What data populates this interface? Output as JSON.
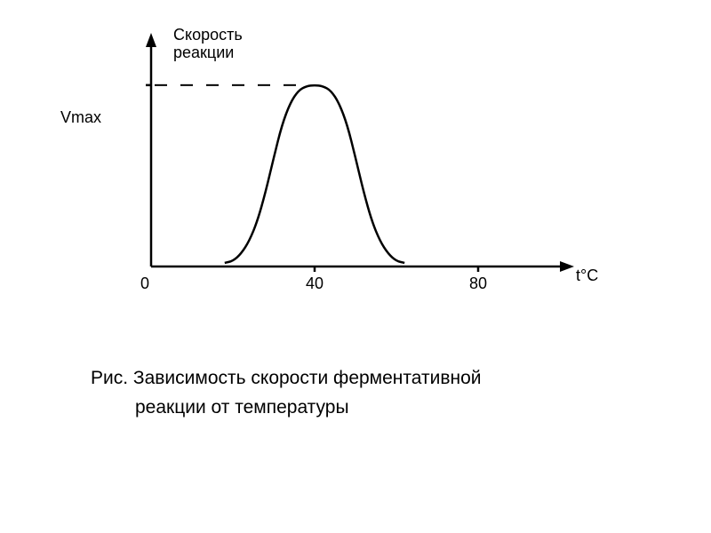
{
  "chart": {
    "type": "line",
    "background_color": "#ffffff",
    "stroke_color": "#000000",
    "axis_stroke_width": 2.5,
    "curve_stroke_width": 2.5,
    "dash_stroke_width": 2,
    "xlim": [
      0,
      100
    ],
    "ylim": [
      0,
      1.2
    ],
    "xtick_values": [
      0,
      40,
      80
    ],
    "xtick_labels": [
      "0",
      "40",
      "80"
    ],
    "ytick_vmax": "Vmax",
    "ylabel_line1": "Скорость",
    "ylabel_line2": "реакции",
    "xlabel": "t°C",
    "curve_points": [
      [
        18,
        0.02
      ],
      [
        20,
        0.03
      ],
      [
        22,
        0.07
      ],
      [
        24,
        0.14
      ],
      [
        26,
        0.25
      ],
      [
        28,
        0.41
      ],
      [
        30,
        0.6
      ],
      [
        32,
        0.78
      ],
      [
        34,
        0.9
      ],
      [
        36,
        0.97
      ],
      [
        38,
        0.995
      ],
      [
        40,
        1.0
      ],
      [
        42,
        0.995
      ],
      [
        44,
        0.97
      ],
      [
        46,
        0.9
      ],
      [
        48,
        0.78
      ],
      [
        50,
        0.6
      ],
      [
        52,
        0.41
      ],
      [
        54,
        0.25
      ],
      [
        56,
        0.14
      ],
      [
        58,
        0.07
      ],
      [
        60,
        0.03
      ],
      [
        62,
        0.02
      ]
    ],
    "label_fontsize": 18,
    "caption_fontsize": 21,
    "dash_segments": 7,
    "dash_on": 14,
    "dash_gap": 15
  },
  "caption": {
    "line1": "Рис. Зависимость скорости ферментативной",
    "line2": "реакции  от температуры"
  }
}
